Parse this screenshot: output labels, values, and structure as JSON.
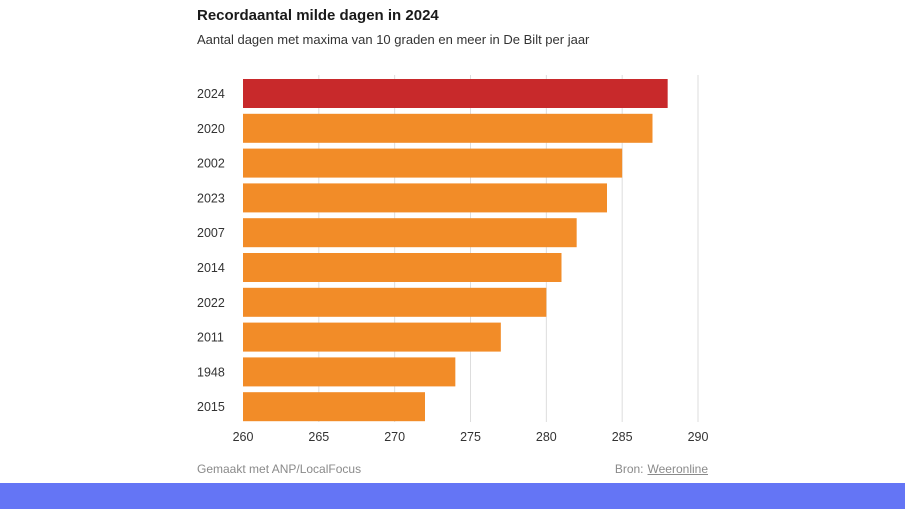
{
  "chart_data": {
    "type": "bar",
    "orientation": "horizontal",
    "title": "Recordaantal milde dagen in 2024",
    "subtitle": "Aantal dagen met maxima van 10 graden en meer in De Bilt per jaar",
    "categories": [
      "2024",
      "2020",
      "2002",
      "2023",
      "2007",
      "2014",
      "2022",
      "2011",
      "1948",
      "2015"
    ],
    "values": [
      288,
      287,
      285,
      284,
      282,
      281,
      280,
      277,
      274,
      272
    ],
    "xlim": [
      260,
      290
    ],
    "xticks": [
      "260",
      "265",
      "270",
      "275",
      "280",
      "285",
      "290"
    ],
    "grid": true,
    "colors": {
      "highlight": "#c8292b",
      "default": "#f28c28",
      "grid": "#dddddd"
    },
    "highlight_index": 0
  },
  "footer": {
    "credit": "Gemaakt met ANP/LocalFocus",
    "source_label": "Bron:",
    "source_link": "Weeronline"
  }
}
